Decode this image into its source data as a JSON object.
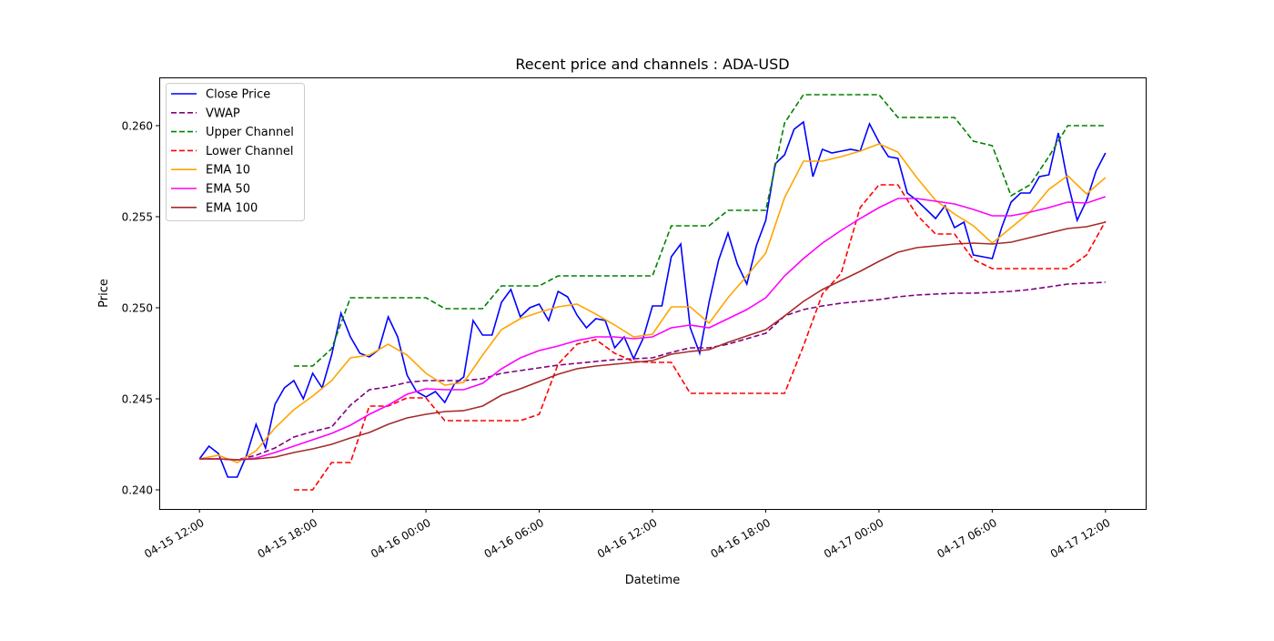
{
  "chart_data": {
    "type": "line",
    "title": "Recent price and channels : ADA-USD",
    "xlabel": "Datetime",
    "ylabel": "Price",
    "x_units": "hours since 04-15 12:00",
    "xlim": [
      -2.13,
      50.13
    ],
    "ylim": [
      0.23895,
      0.26265
    ],
    "grid": false,
    "legend_placement": "top-left",
    "x_ticks": [
      {
        "value": 0,
        "label": "04-15 12:00"
      },
      {
        "value": 6,
        "label": "04-15 18:00"
      },
      {
        "value": 12,
        "label": "04-16 00:00"
      },
      {
        "value": 18,
        "label": "04-16 06:00"
      },
      {
        "value": 24,
        "label": "04-16 12:00"
      },
      {
        "value": 30,
        "label": "04-16 18:00"
      },
      {
        "value": 36,
        "label": "04-17 00:00"
      },
      {
        "value": 42,
        "label": "04-17 06:00"
      },
      {
        "value": 48,
        "label": "04-17 12:00"
      }
    ],
    "y_ticks": [
      {
        "value": 0.24,
        "label": "0.240"
      },
      {
        "value": 0.245,
        "label": "0.245"
      },
      {
        "value": 0.25,
        "label": "0.250"
      },
      {
        "value": 0.255,
        "label": "0.255"
      },
      {
        "value": 0.26,
        "label": "0.260"
      }
    ],
    "series": [
      {
        "name": "Close Price",
        "color": "#0000ff",
        "dash": "solid",
        "x_start": 0,
        "x_step": 0.5,
        "values": [
          0.2417,
          0.2424,
          0.242,
          0.2407,
          0.2407,
          0.2419,
          0.2436,
          0.2423,
          0.2447,
          0.2456,
          0.246,
          0.245,
          0.2464,
          0.2456,
          0.2474,
          0.2497,
          0.2484,
          0.2475,
          0.2473,
          0.2477,
          0.2495,
          0.2484,
          0.2463,
          0.2454,
          0.2451,
          0.2454,
          0.2448,
          0.2458,
          0.2462,
          0.2493,
          0.2485,
          0.2485,
          0.2503,
          0.251,
          0.2495,
          0.25,
          0.2502,
          0.2493,
          0.2509,
          0.2506,
          0.2496,
          0.2489,
          0.2494,
          0.2493,
          0.2478,
          0.2484,
          0.2472,
          0.2483,
          0.2501,
          0.2501,
          0.2528,
          0.2535,
          0.2489,
          0.2475,
          0.2503,
          0.2526,
          0.2541,
          0.2524,
          0.2513,
          0.2534,
          0.2548,
          0.2579,
          0.2584,
          0.2598,
          0.2602,
          0.2572,
          0.2587,
          0.2585,
          0.2586,
          0.2587,
          0.2586,
          0.2601,
          0.2591,
          0.2583,
          0.2582,
          0.2563,
          0.2559,
          0.2554,
          0.2549,
          0.2556,
          0.2544,
          0.2547,
          0.2529,
          0.2528,
          0.2527,
          0.2544,
          0.2558,
          0.2563,
          0.2563,
          0.2572,
          0.2573,
          0.2596,
          0.2569,
          0.2548,
          0.2559,
          0.2575,
          0.2585
        ]
      },
      {
        "name": "VWAP",
        "color": "#800080",
        "dash": "dashed",
        "x_start": 0,
        "x_step": 1,
        "values": [
          0.2417,
          0.2417,
          0.24165,
          0.2419,
          0.2423,
          0.2429,
          0.2432,
          0.24345,
          0.24465,
          0.2455,
          0.24565,
          0.2459,
          0.246,
          0.246,
          0.246,
          0.2461,
          0.2464,
          0.24655,
          0.2467,
          0.24685,
          0.24695,
          0.24705,
          0.24715,
          0.2472,
          0.24725,
          0.24755,
          0.2478,
          0.2478,
          0.248,
          0.2483,
          0.2486,
          0.24955,
          0.2499,
          0.2501,
          0.25025,
          0.25035,
          0.25045,
          0.2506,
          0.2507,
          0.25075,
          0.2508,
          0.2508,
          0.25085,
          0.2509,
          0.251,
          0.25115,
          0.2513,
          0.25135,
          0.2514
        ]
      },
      {
        "name": "Upper Channel",
        "color": "#008000",
        "dash": "dashed",
        "x_start": 5,
        "x_step": 1,
        "values": [
          0.2468,
          0.2468,
          0.24775,
          0.25055,
          0.25055,
          0.25055,
          0.25055,
          0.25055,
          0.24995,
          0.24995,
          0.24995,
          0.2512,
          0.2512,
          0.2512,
          0.25175,
          0.25175,
          0.25175,
          0.25175,
          0.25175,
          0.25175,
          0.2545,
          0.2545,
          0.2545,
          0.25535,
          0.25535,
          0.25535,
          0.26015,
          0.2617,
          0.2617,
          0.2617,
          0.2617,
          0.2617,
          0.26045,
          0.26045,
          0.26045,
          0.26045,
          0.25915,
          0.2589,
          0.25615,
          0.25675,
          0.2583,
          0.26,
          0.26,
          0.26
        ]
      },
      {
        "name": "Lower Channel",
        "color": "#ff0000",
        "dash": "dashed",
        "x_start": 5,
        "x_step": 1,
        "values": [
          0.24,
          0.24,
          0.2415,
          0.2415,
          0.2446,
          0.2446,
          0.24505,
          0.24505,
          0.2438,
          0.2438,
          0.2438,
          0.2438,
          0.2438,
          0.24415,
          0.2469,
          0.248,
          0.24825,
          0.2475,
          0.24705,
          0.247,
          0.247,
          0.2453,
          0.2453,
          0.2453,
          0.2453,
          0.2453,
          0.2453,
          0.2479,
          0.25075,
          0.2519,
          0.2555,
          0.25675,
          0.25675,
          0.2551,
          0.25405,
          0.25405,
          0.25265,
          0.25215,
          0.25215,
          0.25215,
          0.25215,
          0.25215,
          0.2529,
          0.25475
        ]
      },
      {
        "name": "EMA 10",
        "color": "#ffa500",
        "dash": "solid",
        "x_start": 0,
        "x_step": 1,
        "values": [
          0.2417,
          0.2419,
          0.2415,
          0.24215,
          0.2434,
          0.2444,
          0.24515,
          0.246,
          0.24725,
          0.2474,
          0.248,
          0.2474,
          0.2464,
          0.24575,
          0.2459,
          0.2474,
          0.2488,
          0.2494,
          0.24975,
          0.25005,
          0.2502,
          0.24965,
          0.24905,
          0.2484,
          0.24855,
          0.25005,
          0.25005,
          0.24915,
          0.25055,
          0.25175,
          0.253,
          0.25605,
          0.25805,
          0.25805,
          0.2583,
          0.2586,
          0.259,
          0.25855,
          0.25715,
          0.2559,
          0.25515,
          0.2545,
          0.25355,
          0.2544,
          0.25525,
          0.2565,
          0.25725,
          0.25625,
          0.25715
        ]
      },
      {
        "name": "EMA 50",
        "color": "#ff00ff",
        "dash": "solid",
        "x_start": 0,
        "x_step": 1,
        "values": [
          0.2417,
          0.2417,
          0.24165,
          0.24175,
          0.24205,
          0.2424,
          0.24275,
          0.2431,
          0.24355,
          0.24415,
          0.24465,
          0.24525,
          0.24555,
          0.2455,
          0.2455,
          0.24585,
          0.24665,
          0.24725,
          0.24765,
          0.2479,
          0.2482,
          0.2484,
          0.2484,
          0.2483,
          0.2484,
          0.2489,
          0.24905,
          0.2489,
          0.2494,
          0.2499,
          0.25055,
          0.25175,
          0.2527,
          0.25355,
          0.25425,
          0.2549,
          0.2555,
          0.256,
          0.256,
          0.25585,
          0.2557,
          0.2554,
          0.25505,
          0.25505,
          0.25525,
          0.2555,
          0.2558,
          0.25575,
          0.2561
        ]
      },
      {
        "name": "EMA 100",
        "color": "#a52a2a",
        "dash": "solid",
        "x_start": 0,
        "x_step": 1,
        "values": [
          0.2417,
          0.2417,
          0.24165,
          0.2417,
          0.2418,
          0.24205,
          0.24225,
          0.2425,
          0.24285,
          0.24315,
          0.2436,
          0.24395,
          0.24415,
          0.2443,
          0.24435,
          0.2446,
          0.2452,
          0.24555,
          0.24595,
          0.24635,
          0.24665,
          0.2468,
          0.2469,
          0.247,
          0.2471,
          0.24745,
          0.2476,
          0.2477,
          0.2481,
          0.24845,
          0.2488,
          0.24955,
          0.25035,
          0.251,
          0.2515,
          0.252,
          0.25255,
          0.25305,
          0.2533,
          0.2534,
          0.2535,
          0.25355,
          0.2535,
          0.2536,
          0.25385,
          0.2541,
          0.25435,
          0.25445,
          0.2547
        ]
      }
    ]
  }
}
